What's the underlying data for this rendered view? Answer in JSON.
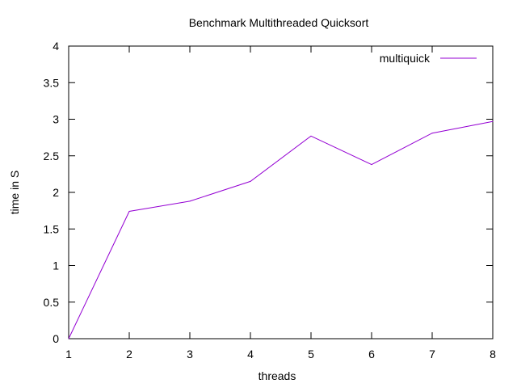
{
  "chart_data": {
    "type": "line",
    "title": "Benchmark Multithreaded Quicksort",
    "xlabel": "threads",
    "ylabel": "time in S",
    "xlim": [
      1,
      8
    ],
    "ylim": [
      0,
      4
    ],
    "xticks": [
      "1",
      "2",
      "3",
      "4",
      "5",
      "6",
      "7",
      "8"
    ],
    "yticks": [
      "0",
      "0.5",
      "1",
      "1.5",
      "2",
      "2.5",
      "3",
      "3.5",
      "4"
    ],
    "grid": false,
    "legend_position": "top-right",
    "series": [
      {
        "name": "multiquick",
        "color": "#9400d3",
        "x": [
          1,
          2,
          3,
          4,
          5,
          6,
          7,
          8
        ],
        "y": [
          0,
          1.74,
          1.88,
          2.15,
          2.77,
          2.38,
          2.81,
          2.97
        ]
      }
    ]
  }
}
